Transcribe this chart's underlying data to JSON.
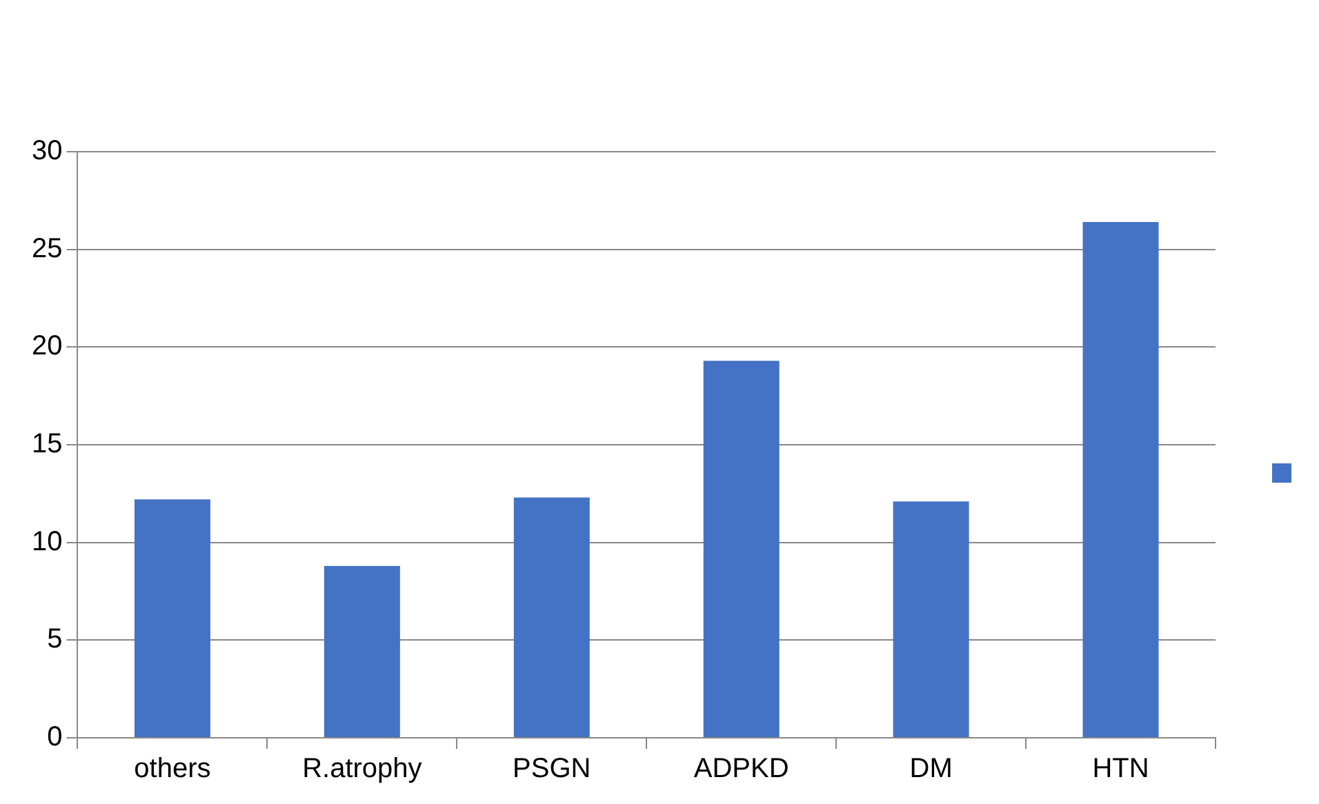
{
  "chart_data": {
    "type": "bar",
    "categories": [
      "others",
      "R.atrophy",
      "PSGN",
      "ADPKD",
      "DM",
      "HTN"
    ],
    "series": [
      {
        "color": "#4472c4",
        "values": [
          12.2,
          8.8,
          12.3,
          19.3,
          12.1,
          26.4
        ]
      }
    ],
    "ylim": [
      0,
      30
    ],
    "yticks": [
      0,
      5,
      10,
      15,
      20,
      25,
      30
    ],
    "grid": "y"
  }
}
